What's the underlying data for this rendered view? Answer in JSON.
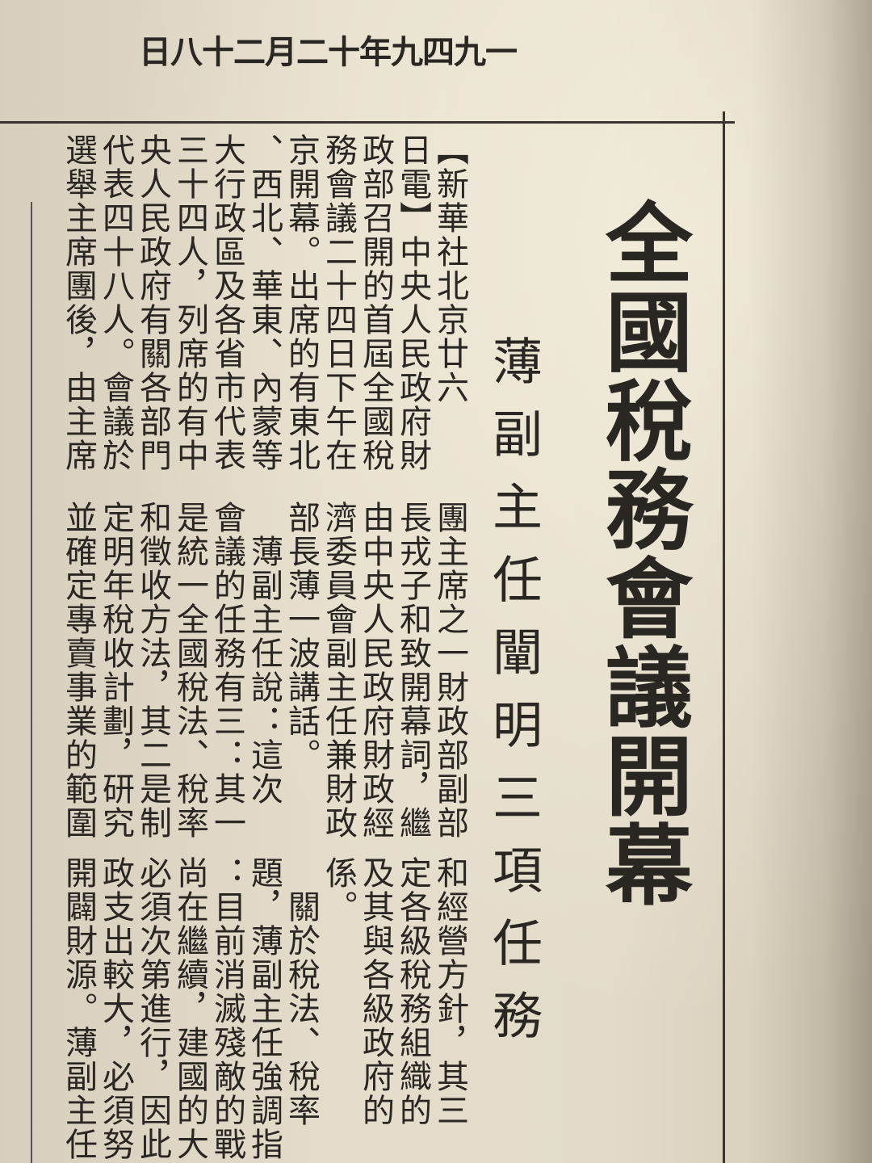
{
  "dateline": "一九四九年十二月二十八日",
  "headline": {
    "title": "全國稅務會議開幕",
    "subtitle": "薄副主任闡明三項任務"
  },
  "body": {
    "block1": "【新華社北京廿六\n日電】中央人民政府財\n政部召開的首屆全國稅\n務會議二十四日下午在\n京開幕。出席的有東北\n、西北、華東、內蒙等\n大行政區及各省市代表\n三十四人，列席的有中\n央人民政府有關各部門\n代表四十八人。會議於\n選舉主席團後，由主席",
    "block2": "團主席之一財政部副部\n長戎子和致開幕詞，繼\n由中央人民政府財政經\n濟委員會副主任兼財政\n部長薄一波講話。\n　薄副主任說：這次\n會議的任務有三：其一\n是統一全國稅法、稅率\n和徵收方法，其二是制\n定明年稅收計劃，研究\n並確定專賣事業的範圍",
    "block3": "和經營方針，其三\n定各級稅務組織的\n及其與各級政府的\n係。\n　關於稅法、稅率\n題，薄副主任強調指\n：目前消滅殘敵的戰\n尚在繼續，建國的大\n必須次第進行，因此\n政支出較大，必須努\n開闢財源。薄副主任"
  }
}
